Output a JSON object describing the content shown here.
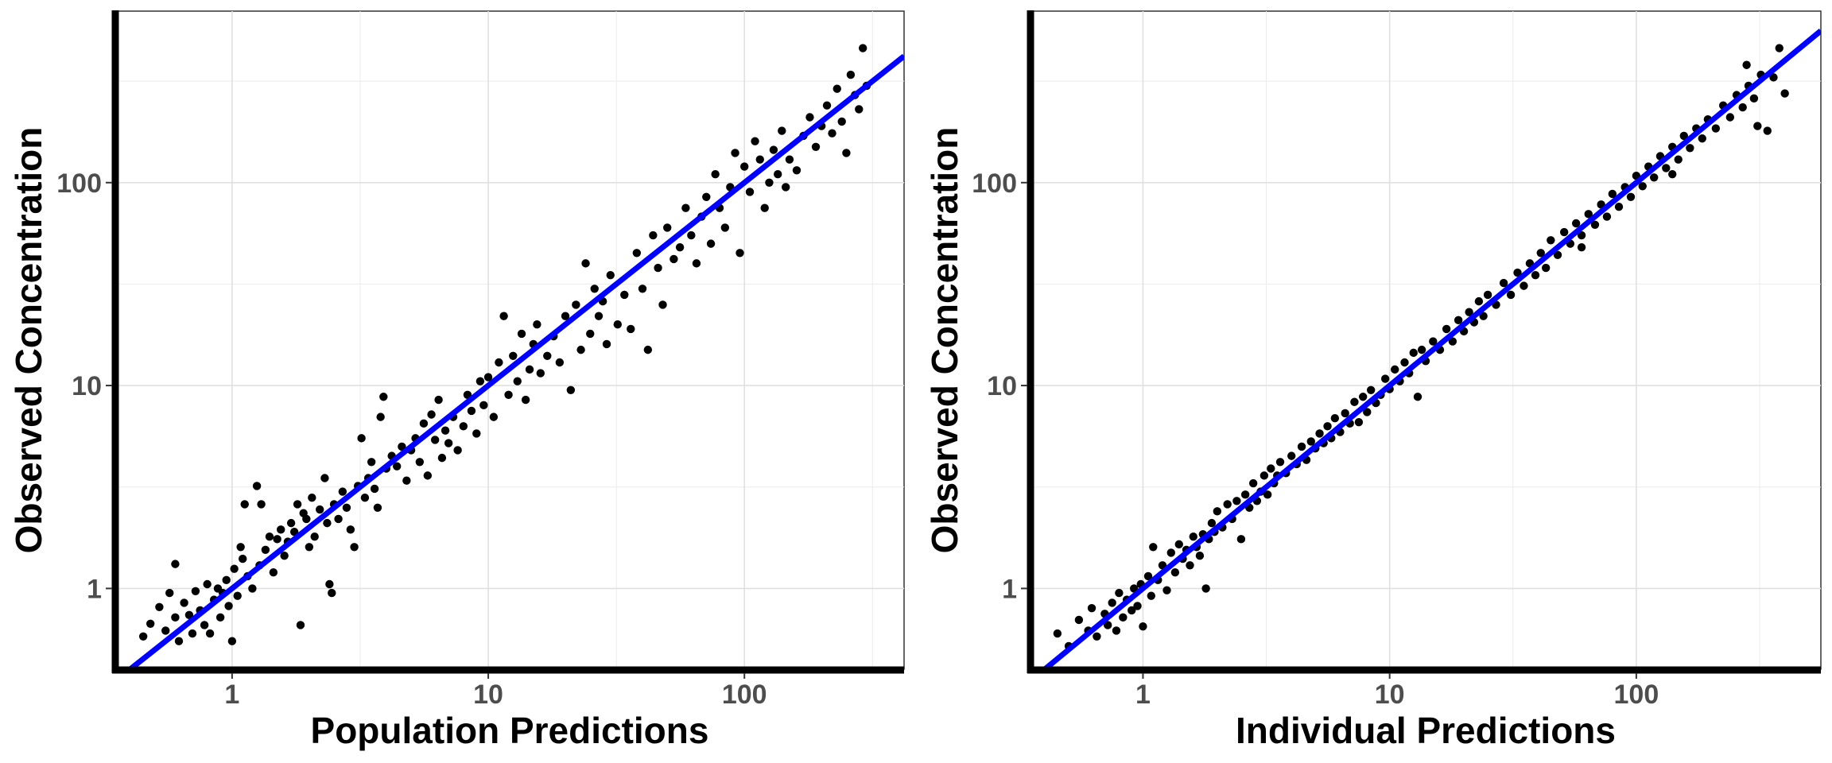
{
  "chart_data": [
    {
      "type": "scatter",
      "title": "",
      "xlabel": "Population Predictions",
      "ylabel": "Observed Concentration",
      "x_scale": "log10",
      "y_scale": "log10",
      "xlim": [
        0.35,
        420
      ],
      "ylim": [
        0.4,
        700
      ],
      "x_ticks": [
        1,
        10,
        100
      ],
      "x_tick_labels": [
        "1",
        "10",
        "100"
      ],
      "y_ticks": [
        1,
        10,
        100
      ],
      "y_tick_labels": [
        "1",
        "10",
        "100"
      ],
      "grid": true,
      "line": {
        "type": "identity",
        "x": [
          0.35,
          420
        ],
        "y": [
          0.35,
          420
        ],
        "color": "#0000ff"
      },
      "point_color": "#000000",
      "points": [
        [
          0.45,
          0.58
        ],
        [
          0.48,
          0.67
        ],
        [
          0.52,
          0.81
        ],
        [
          0.55,
          0.62
        ],
        [
          0.57,
          0.95
        ],
        [
          0.6,
          0.72
        ],
        [
          0.6,
          1.32
        ],
        [
          0.62,
          0.55
        ],
        [
          0.65,
          0.85
        ],
        [
          0.68,
          0.74
        ],
        [
          0.7,
          0.6
        ],
        [
          0.72,
          0.97
        ],
        [
          0.75,
          0.78
        ],
        [
          0.78,
          0.66
        ],
        [
          0.8,
          1.05
        ],
        [
          0.82,
          0.6
        ],
        [
          0.85,
          0.88
        ],
        [
          0.88,
          1.0
        ],
        [
          0.9,
          0.72
        ],
        [
          0.92,
          0.95
        ],
        [
          0.95,
          1.1
        ],
        [
          0.97,
          0.82
        ],
        [
          1.0,
          0.55
        ],
        [
          1.02,
          1.25
        ],
        [
          1.05,
          0.92
        ],
        [
          1.08,
          1.6
        ],
        [
          1.1,
          1.4
        ],
        [
          1.12,
          2.6
        ],
        [
          1.15,
          1.15
        ],
        [
          1.2,
          1.0
        ],
        [
          1.25,
          3.2
        ],
        [
          1.28,
          1.3
        ],
        [
          1.3,
          2.6
        ],
        [
          1.35,
          1.55
        ],
        [
          1.4,
          1.8
        ],
        [
          1.45,
          1.2
        ],
        [
          1.5,
          1.75
        ],
        [
          1.55,
          1.95
        ],
        [
          1.6,
          1.45
        ],
        [
          1.65,
          1.7
        ],
        [
          1.7,
          2.1
        ],
        [
          1.75,
          1.9
        ],
        [
          1.8,
          2.6
        ],
        [
          1.85,
          0.66
        ],
        [
          1.9,
          2.35
        ],
        [
          1.95,
          2.2
        ],
        [
          2.0,
          1.6
        ],
        [
          2.05,
          2.8
        ],
        [
          2.1,
          1.8
        ],
        [
          2.2,
          2.45
        ],
        [
          2.3,
          3.5
        ],
        [
          2.35,
          2.1
        ],
        [
          2.4,
          1.05
        ],
        [
          2.45,
          0.95
        ],
        [
          2.5,
          2.6
        ],
        [
          2.6,
          2.2
        ],
        [
          2.7,
          3.0
        ],
        [
          2.8,
          2.5
        ],
        [
          2.9,
          1.95
        ],
        [
          3.0,
          1.6
        ],
        [
          3.1,
          3.2
        ],
        [
          3.2,
          5.5
        ],
        [
          3.3,
          2.8
        ],
        [
          3.4,
          3.5
        ],
        [
          3.5,
          4.2
        ],
        [
          3.6,
          3.1
        ],
        [
          3.7,
          2.5
        ],
        [
          3.8,
          7.0
        ],
        [
          3.9,
          8.8
        ],
        [
          4.0,
          3.9
        ],
        [
          4.2,
          4.5
        ],
        [
          4.4,
          4.0
        ],
        [
          4.6,
          5.0
        ],
        [
          4.8,
          3.4
        ],
        [
          5.0,
          4.8
        ],
        [
          5.2,
          5.5
        ],
        [
          5.4,
          4.2
        ],
        [
          5.6,
          6.5
        ],
        [
          5.8,
          3.6
        ],
        [
          6.0,
          7.2
        ],
        [
          6.2,
          5.4
        ],
        [
          6.4,
          8.5
        ],
        [
          6.6,
          4.4
        ],
        [
          6.8,
          6.0
        ],
        [
          7.0,
          5.2
        ],
        [
          7.3,
          7.0
        ],
        [
          7.6,
          4.8
        ],
        [
          8.0,
          6.3
        ],
        [
          8.3,
          9.0
        ],
        [
          8.6,
          7.5
        ],
        [
          9.0,
          5.8
        ],
        [
          9.3,
          10.5
        ],
        [
          9.6,
          8.0
        ],
        [
          10.0,
          11.0
        ],
        [
          10.5,
          7.0
        ],
        [
          11.0,
          13.0
        ],
        [
          11.5,
          22.0
        ],
        [
          12.0,
          9.0
        ],
        [
          12.5,
          14.0
        ],
        [
          13.0,
          10.5
        ],
        [
          13.5,
          18.0
        ],
        [
          14.0,
          8.5
        ],
        [
          14.5,
          12.0
        ],
        [
          15.0,
          16.0
        ],
        [
          15.5,
          20.0
        ],
        [
          16.0,
          11.5
        ],
        [
          17.0,
          14.0
        ],
        [
          18.0,
          17.5
        ],
        [
          19.0,
          13.0
        ],
        [
          20.0,
          22.0
        ],
        [
          21.0,
          9.5
        ],
        [
          22.0,
          25.0
        ],
        [
          23.0,
          15.0
        ],
        [
          24.0,
          40.0
        ],
        [
          25.0,
          18.0
        ],
        [
          26.0,
          30.0
        ],
        [
          27.0,
          22.0
        ],
        [
          28.0,
          26.0
        ],
        [
          29.0,
          16.0
        ],
        [
          30.0,
          35.0
        ],
        [
          32.0,
          20.0
        ],
        [
          34.0,
          28.0
        ],
        [
          36.0,
          19.0
        ],
        [
          38.0,
          45.0
        ],
        [
          40.0,
          30.0
        ],
        [
          42.0,
          15.0
        ],
        [
          44.0,
          55.0
        ],
        [
          46.0,
          38.0
        ],
        [
          48.0,
          25.0
        ],
        [
          50.0,
          60.0
        ],
        [
          53.0,
          42.0
        ],
        [
          56.0,
          48.0
        ],
        [
          59.0,
          75.0
        ],
        [
          62.0,
          55.0
        ],
        [
          65.0,
          40.0
        ],
        [
          68.0,
          68.0
        ],
        [
          71.0,
          85.0
        ],
        [
          74.0,
          50.0
        ],
        [
          77.0,
          110.0
        ],
        [
          80.0,
          75.0
        ],
        [
          84.0,
          60.0
        ],
        [
          88.0,
          95.0
        ],
        [
          92.0,
          140.0
        ],
        [
          96.0,
          45.0
        ],
        [
          100.0,
          120.0
        ],
        [
          105.0,
          90.0
        ],
        [
          110.0,
          160.0
        ],
        [
          115.0,
          130.0
        ],
        [
          120.0,
          75.0
        ],
        [
          125.0,
          100.0
        ],
        [
          130.0,
          145.0
        ],
        [
          135.0,
          110.0
        ],
        [
          140.0,
          180.0
        ],
        [
          145.0,
          95.0
        ],
        [
          150.0,
          130.0
        ],
        [
          160.0,
          115.0
        ],
        [
          170.0,
          170.0
        ],
        [
          180.0,
          210.0
        ],
        [
          190.0,
          150.0
        ],
        [
          200.0,
          190.0
        ],
        [
          210.0,
          240.0
        ],
        [
          220.0,
          175.0
        ],
        [
          230.0,
          290.0
        ],
        [
          240.0,
          200.0
        ],
        [
          250.0,
          140.0
        ],
        [
          260.0,
          340.0
        ],
        [
          270.0,
          270.0
        ],
        [
          280.0,
          230.0
        ],
        [
          290.0,
          460.0
        ],
        [
          300.0,
          300.0
        ]
      ]
    },
    {
      "type": "scatter",
      "title": "",
      "xlabel": "Individual Predictions",
      "ylabel": "Observed Concentration",
      "x_scale": "log10",
      "y_scale": "log10",
      "xlim": [
        0.35,
        560
      ],
      "ylim": [
        0.4,
        700
      ],
      "x_ticks": [
        1,
        10,
        100
      ],
      "x_tick_labels": [
        "1",
        "10",
        "100"
      ],
      "y_ticks": [
        1,
        10,
        100
      ],
      "y_tick_labels": [
        "1",
        "10",
        "100"
      ],
      "grid": true,
      "line": {
        "type": "identity",
        "x": [
          0.35,
          560
        ],
        "y": [
          0.35,
          560
        ],
        "color": "#0000ff"
      },
      "point_color": "#000000",
      "points": [
        [
          0.45,
          0.6
        ],
        [
          0.5,
          0.52
        ],
        [
          0.55,
          0.7
        ],
        [
          0.6,
          0.62
        ],
        [
          0.62,
          0.8
        ],
        [
          0.65,
          0.58
        ],
        [
          0.7,
          0.75
        ],
        [
          0.72,
          0.66
        ],
        [
          0.75,
          0.85
        ],
        [
          0.78,
          0.62
        ],
        [
          0.8,
          0.95
        ],
        [
          0.83,
          0.72
        ],
        [
          0.86,
          0.88
        ],
        [
          0.9,
          0.78
        ],
        [
          0.92,
          1.0
        ],
        [
          0.95,
          0.82
        ],
        [
          0.98,
          1.05
        ],
        [
          1.0,
          0.65
        ],
        [
          1.05,
          1.15
        ],
        [
          1.08,
          0.92
        ],
        [
          1.1,
          1.6
        ],
        [
          1.15,
          1.1
        ],
        [
          1.2,
          1.3
        ],
        [
          1.25,
          0.98
        ],
        [
          1.3,
          1.5
        ],
        [
          1.35,
          1.2
        ],
        [
          1.4,
          1.65
        ],
        [
          1.45,
          1.4
        ],
        [
          1.5,
          1.55
        ],
        [
          1.55,
          1.3
        ],
        [
          1.6,
          1.8
        ],
        [
          1.65,
          1.6
        ],
        [
          1.7,
          1.45
        ],
        [
          1.75,
          1.85
        ],
        [
          1.8,
          1.0
        ],
        [
          1.85,
          1.75
        ],
        [
          1.9,
          2.1
        ],
        [
          1.95,
          1.9
        ],
        [
          2.0,
          2.4
        ],
        [
          2.1,
          2.0
        ],
        [
          2.2,
          2.6
        ],
        [
          2.3,
          2.2
        ],
        [
          2.4,
          2.7
        ],
        [
          2.5,
          1.75
        ],
        [
          2.6,
          2.9
        ],
        [
          2.7,
          2.5
        ],
        [
          2.8,
          3.3
        ],
        [
          2.9,
          2.7
        ],
        [
          3.0,
          3.0
        ],
        [
          3.1,
          3.6
        ],
        [
          3.2,
          2.9
        ],
        [
          3.3,
          3.9
        ],
        [
          3.4,
          3.3
        ],
        [
          3.5,
          3.6
        ],
        [
          3.6,
          4.2
        ],
        [
          3.8,
          3.7
        ],
        [
          4.0,
          4.5
        ],
        [
          4.2,
          4.1
        ],
        [
          4.4,
          5.0
        ],
        [
          4.6,
          4.3
        ],
        [
          4.8,
          5.3
        ],
        [
          5.0,
          4.9
        ],
        [
          5.2,
          5.8
        ],
        [
          5.4,
          5.2
        ],
        [
          5.6,
          6.3
        ],
        [
          5.8,
          5.5
        ],
        [
          6.0,
          6.9
        ],
        [
          6.3,
          5.9
        ],
        [
          6.6,
          7.3
        ],
        [
          6.9,
          6.5
        ],
        [
          7.2,
          8.3
        ],
        [
          7.5,
          6.6
        ],
        [
          7.8,
          8.8
        ],
        [
          8.1,
          7.4
        ],
        [
          8.4,
          9.5
        ],
        [
          8.8,
          8.2
        ],
        [
          9.2,
          9.0
        ],
        [
          9.6,
          10.8
        ],
        [
          10.0,
          9.6
        ],
        [
          10.5,
          12.0
        ],
        [
          11.0,
          10.5
        ],
        [
          11.5,
          13.0
        ],
        [
          12.0,
          11.5
        ],
        [
          12.5,
          14.5
        ],
        [
          13.0,
          8.8
        ],
        [
          13.5,
          15.0
        ],
        [
          14.0,
          13.2
        ],
        [
          15.0,
          16.5
        ],
        [
          16.0,
          15.0
        ],
        [
          17.0,
          19.0
        ],
        [
          18.0,
          16.5
        ],
        [
          19.0,
          21.0
        ],
        [
          20.0,
          18.5
        ],
        [
          21.0,
          23.0
        ],
        [
          22.0,
          20.5
        ],
        [
          23.0,
          26.0
        ],
        [
          24.0,
          22.0
        ],
        [
          25.0,
          28.0
        ],
        [
          27.0,
          25.0
        ],
        [
          29.0,
          32.0
        ],
        [
          31.0,
          28.0
        ],
        [
          33.0,
          36.0
        ],
        [
          35.0,
          31.0
        ],
        [
          37.0,
          40.0
        ],
        [
          39.0,
          35.0
        ],
        [
          41.0,
          45.0
        ],
        [
          43.0,
          38.0
        ],
        [
          45.0,
          52.0
        ],
        [
          48.0,
          44.0
        ],
        [
          51.0,
          57.0
        ],
        [
          54.0,
          50.0
        ],
        [
          57.0,
          63.0
        ],
        [
          60.0,
          55.0
        ],
        [
          64.0,
          70.0
        ],
        [
          68.0,
          62.0
        ],
        [
          72.0,
          78.0
        ],
        [
          76.0,
          68.0
        ],
        [
          80.0,
          88.0
        ],
        [
          85.0,
          76.0
        ],
        [
          90.0,
          95.0
        ],
        [
          95.0,
          85.0
        ],
        [
          100.0,
          108.0
        ],
        [
          106.0,
          96.0
        ],
        [
          112.0,
          120.0
        ],
        [
          118.0,
          106.0
        ],
        [
          125.0,
          135.0
        ],
        [
          132.0,
          118.0
        ],
        [
          140.0,
          150.0
        ],
        [
          148.0,
          130.0
        ],
        [
          156.0,
          170.0
        ],
        [
          165.0,
          148.0
        ],
        [
          175.0,
          185.0
        ],
        [
          185.0,
          165.0
        ],
        [
          195.0,
          205.0
        ],
        [
          210.0,
          185.0
        ],
        [
          225.0,
          240.0
        ],
        [
          240.0,
          210.0
        ],
        [
          255.0,
          270.0
        ],
        [
          270.0,
          235.0
        ],
        [
          285.0,
          300.0
        ],
        [
          300.0,
          260.0
        ],
        [
          320.0,
          340.0
        ],
        [
          340.0,
          180.0
        ],
        [
          360.0,
          330.0
        ],
        [
          380.0,
          460.0
        ],
        [
          400.0,
          275.0
        ],
        [
          310.0,
          190.0
        ],
        [
          280.0,
          380.0
        ],
        [
          140.0,
          110.0
        ],
        [
          60.0,
          48.0
        ]
      ]
    }
  ]
}
